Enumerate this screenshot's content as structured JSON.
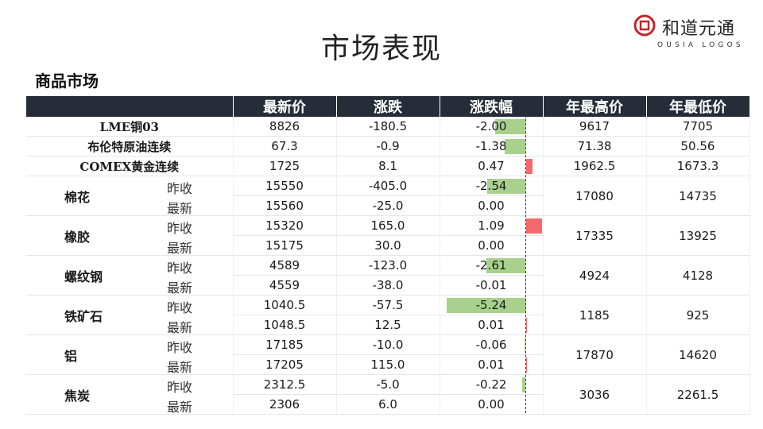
{
  "title": "市场表现",
  "logo": {
    "name": "和道元通",
    "sub": "OUSIA LOGOS"
  },
  "section": "商品市场",
  "headers": [
    "",
    "最新价",
    "涨跌",
    "涨跌幅",
    "年最高价",
    "年最低价"
  ],
  "single_rows": [
    {
      "name": "LME铜03",
      "price": "8826",
      "change": "-180.5",
      "pct": "-2.00",
      "pct_value": -2.0,
      "high": "9617",
      "low": "7705"
    },
    {
      "name": "布伦特原油连续",
      "price": "67.3",
      "change": "-0.9",
      "pct": "-1.38",
      "pct_value": -1.38,
      "high": "71.38",
      "low": "50.56"
    },
    {
      "name": "COMEX黄金连续",
      "price": "1725",
      "change": "8.1",
      "pct": "0.47",
      "pct_value": 0.47,
      "high": "1962.5",
      "low": "1673.3"
    }
  ],
  "group_rows": [
    {
      "name": "棉花",
      "high": "17080",
      "low": "14735",
      "rows": [
        {
          "label": "昨收",
          "price": "15550",
          "change": "-405.0",
          "pct": "-2.54",
          "pct_value": -2.54
        },
        {
          "label": "最新",
          "price": "15560",
          "change": "-25.0",
          "pct": "0.00",
          "pct_value": 0.0
        }
      ]
    },
    {
      "name": "橡胶",
      "high": "17335",
      "low": "13925",
      "rows": [
        {
          "label": "昨收",
          "price": "15320",
          "change": "165.0",
          "pct": "1.09",
          "pct_value": 1.09
        },
        {
          "label": "最新",
          "price": "15175",
          "change": "30.0",
          "pct": "0.00",
          "pct_value": 0.0
        }
      ]
    },
    {
      "name": "螺纹钢",
      "high": "4924",
      "low": "4128",
      "rows": [
        {
          "label": "昨收",
          "price": "4589",
          "change": "-123.0",
          "pct": "-2.61",
          "pct_value": -2.61
        },
        {
          "label": "最新",
          "price": "4559",
          "change": "-38.0",
          "pct": "-0.01",
          "pct_value": -0.01
        }
      ]
    },
    {
      "name": "铁矿石",
      "high": "1185",
      "low": "925",
      "rows": [
        {
          "label": "昨收",
          "price": "1040.5",
          "change": "-57.5",
          "pct": "-5.24",
          "pct_value": -5.24
        },
        {
          "label": "最新",
          "price": "1048.5",
          "change": "12.5",
          "pct": "0.01",
          "pct_value": 0.01
        }
      ]
    },
    {
      "name": "铝",
      "high": "17870",
      "low": "14620",
      "rows": [
        {
          "label": "昨收",
          "price": "17185",
          "change": "-10.0",
          "pct": "-0.06",
          "pct_value": -0.06
        },
        {
          "label": "最新",
          "price": "17205",
          "change": "115.0",
          "pct": "0.01",
          "pct_value": 0.01
        }
      ]
    },
    {
      "name": "焦炭",
      "high": "3036",
      "low": "2261.5",
      "rows": [
        {
          "label": "昨收",
          "price": "2312.5",
          "change": "-5.0",
          "pct": "-0.22",
          "pct_value": -0.22
        },
        {
          "label": "最新",
          "price": "2306",
          "change": "6.0",
          "pct": "0.00",
          "pct_value": 0.0
        }
      ]
    }
  ],
  "colors": {
    "header_bg": "#262d38",
    "neg_bar": "#a9d18e",
    "pos_bar": "#f4696b"
  }
}
